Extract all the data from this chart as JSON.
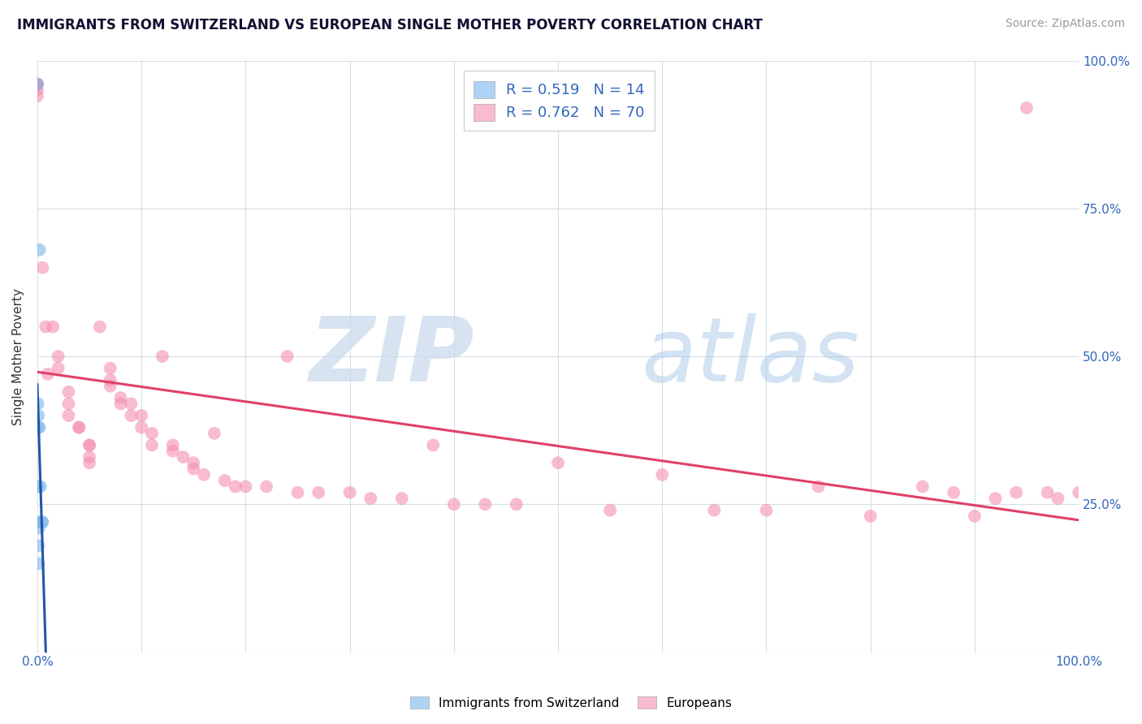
{
  "title": "IMMIGRANTS FROM SWITZERLAND VS EUROPEAN SINGLE MOTHER POVERTY CORRELATION CHART",
  "source": "Source: ZipAtlas.com",
  "ylabel": "Single Mother Poverty",
  "r_swiss": "R = 0.519",
  "n_swiss": "N = 14",
  "r_euro": "R = 0.762",
  "n_euro": "N = 70",
  "swiss_color": "#7cb4e8",
  "euro_color": "#f48fb1",
  "swiss_legend_color": "#aed4f5",
  "euro_legend_color": "#f8bbd0",
  "swiss_line_color": "#2255aa",
  "euro_line_color": "#e0406a",
  "background_color": "#ffffff",
  "grid_color": "#d4dfe8",
  "watermark_zip": "ZIP",
  "watermark_atlas": "atlas",
  "swiss_dots": [
    [
      0.0,
      96.0
    ],
    [
      0.05,
      42.0
    ],
    [
      0.05,
      38.0
    ],
    [
      0.08,
      28.0
    ],
    [
      0.1,
      22.0
    ],
    [
      0.1,
      40.0
    ],
    [
      0.12,
      18.0
    ],
    [
      0.12,
      15.0
    ],
    [
      0.15,
      21.0
    ],
    [
      0.2,
      68.0
    ],
    [
      0.2,
      38.0
    ],
    [
      0.3,
      28.0
    ],
    [
      0.45,
      22.0
    ],
    [
      0.5,
      22.0
    ]
  ],
  "euro_dots": [
    [
      0.0,
      96.0
    ],
    [
      0.0,
      96.0
    ],
    [
      0.0,
      96.0
    ],
    [
      0.0,
      95.0
    ],
    [
      0.0,
      94.0
    ],
    [
      0.5,
      65.0
    ],
    [
      0.8,
      55.0
    ],
    [
      1.0,
      47.0
    ],
    [
      1.5,
      55.0
    ],
    [
      2.0,
      50.0
    ],
    [
      2.0,
      48.0
    ],
    [
      3.0,
      44.0
    ],
    [
      3.0,
      42.0
    ],
    [
      3.0,
      40.0
    ],
    [
      4.0,
      38.0
    ],
    [
      4.0,
      38.0
    ],
    [
      5.0,
      35.0
    ],
    [
      5.0,
      35.0
    ],
    [
      5.0,
      33.0
    ],
    [
      5.0,
      32.0
    ],
    [
      6.0,
      55.0
    ],
    [
      7.0,
      48.0
    ],
    [
      7.0,
      46.0
    ],
    [
      7.0,
      45.0
    ],
    [
      8.0,
      43.0
    ],
    [
      8.0,
      42.0
    ],
    [
      9.0,
      42.0
    ],
    [
      9.0,
      40.0
    ],
    [
      10.0,
      40.0
    ],
    [
      10.0,
      38.0
    ],
    [
      11.0,
      37.0
    ],
    [
      11.0,
      35.0
    ],
    [
      12.0,
      50.0
    ],
    [
      13.0,
      35.0
    ],
    [
      13.0,
      34.0
    ],
    [
      14.0,
      33.0
    ],
    [
      15.0,
      32.0
    ],
    [
      15.0,
      31.0
    ],
    [
      16.0,
      30.0
    ],
    [
      17.0,
      37.0
    ],
    [
      18.0,
      29.0
    ],
    [
      19.0,
      28.0
    ],
    [
      20.0,
      28.0
    ],
    [
      22.0,
      28.0
    ],
    [
      24.0,
      50.0
    ],
    [
      25.0,
      27.0
    ],
    [
      27.0,
      27.0
    ],
    [
      30.0,
      27.0
    ],
    [
      32.0,
      26.0
    ],
    [
      35.0,
      26.0
    ],
    [
      38.0,
      35.0
    ],
    [
      40.0,
      25.0
    ],
    [
      43.0,
      25.0
    ],
    [
      46.0,
      25.0
    ],
    [
      50.0,
      32.0
    ],
    [
      55.0,
      24.0
    ],
    [
      60.0,
      30.0
    ],
    [
      65.0,
      24.0
    ],
    [
      70.0,
      24.0
    ],
    [
      75.0,
      28.0
    ],
    [
      80.0,
      23.0
    ],
    [
      85.0,
      28.0
    ],
    [
      88.0,
      27.0
    ],
    [
      90.0,
      23.0
    ],
    [
      92.0,
      26.0
    ],
    [
      94.0,
      27.0
    ],
    [
      95.0,
      92.0
    ],
    [
      97.0,
      27.0
    ],
    [
      98.0,
      26.0
    ],
    [
      100.0,
      27.0
    ]
  ],
  "xlim": [
    0.0,
    100.0
  ],
  "ylim": [
    0.0,
    100.0
  ],
  "xticks": [
    0.0,
    10.0,
    20.0,
    30.0,
    40.0,
    50.0,
    60.0,
    70.0,
    80.0,
    90.0,
    100.0
  ],
  "yticks": [
    0.0,
    25.0,
    50.0,
    75.0,
    100.0
  ]
}
